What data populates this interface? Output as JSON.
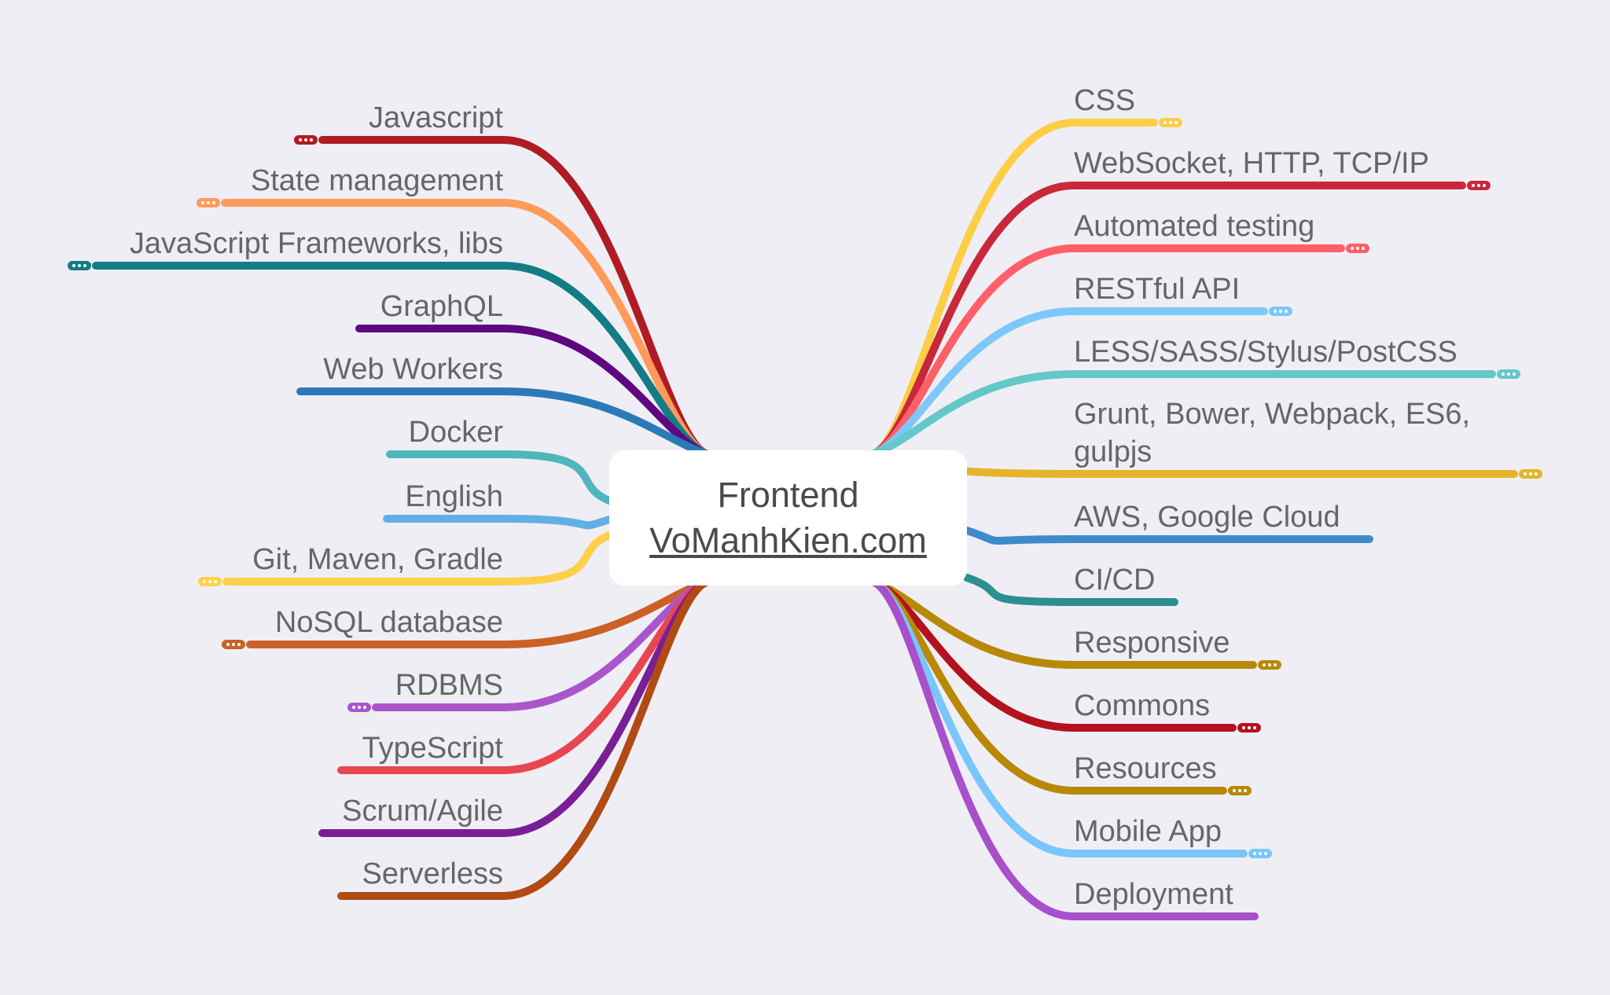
{
  "root": {
    "title": "Frontend",
    "link": "VoManhKien.com"
  },
  "left_branches": [
    {
      "label": "Javascript",
      "color": "#b01c24",
      "collapsed": true
    },
    {
      "label": "State management",
      "color": "#ff9a5a",
      "collapsed": true
    },
    {
      "label": "JavaScript Frameworks, libs",
      "color": "#147c84",
      "collapsed": true
    },
    {
      "label": "GraphQL",
      "color": "#5e0780",
      "collapsed": false
    },
    {
      "label": "Web Workers",
      "color": "#2b7ab8",
      "collapsed": false
    },
    {
      "label": "Docker",
      "color": "#4fb7bb",
      "collapsed": false
    },
    {
      "label": "English",
      "color": "#60b0e4",
      "collapsed": false
    },
    {
      "label": "Git, Maven, Gradle",
      "color": "#ffd04a",
      "collapsed": true
    },
    {
      "label": "NoSQL database",
      "color": "#cb6124",
      "collapsed": true
    },
    {
      "label": "RDBMS",
      "color": "#aa56cb",
      "collapsed": true
    },
    {
      "label": "TypeScript",
      "color": "#e8464f",
      "collapsed": false
    },
    {
      "label": "Scrum/Agile",
      "color": "#7a1e96",
      "collapsed": false
    },
    {
      "label": "Serverless",
      "color": "#b24a14",
      "collapsed": false
    }
  ],
  "right_branches": [
    {
      "label": "CSS",
      "color": "#fcce45",
      "collapsed": true
    },
    {
      "label": "WebSocket, HTTP, TCP/IP",
      "color": "#c8283a",
      "collapsed": true
    },
    {
      "label": "Automated testing",
      "color": "#ff5f68",
      "collapsed": true
    },
    {
      "label": "RESTful API",
      "color": "#7cc8f8",
      "collapsed": true
    },
    {
      "label": "LESS/SASS/Stylus/PostCSS",
      "color": "#64c8c8",
      "collapsed": true
    },
    {
      "label": "Grunt, Bower, Webpack, ES6, gulpjs",
      "color": "#e3b42c",
      "collapsed": true
    },
    {
      "label": "AWS, Google Cloud",
      "color": "#3d8bcb",
      "collapsed": false
    },
    {
      "label": "CI/CD",
      "color": "#2c8f90",
      "collapsed": false
    },
    {
      "label": "Responsive",
      "color": "#b88808",
      "collapsed": true
    },
    {
      "label": "Commons",
      "color": "#b2121e",
      "collapsed": true
    },
    {
      "label": "Resources",
      "color": "#b88808",
      "collapsed": true
    },
    {
      "label": "Mobile App",
      "color": "#78c6fa",
      "collapsed": true
    },
    {
      "label": "Deployment",
      "color": "#a84fcb",
      "collapsed": false
    }
  ]
}
